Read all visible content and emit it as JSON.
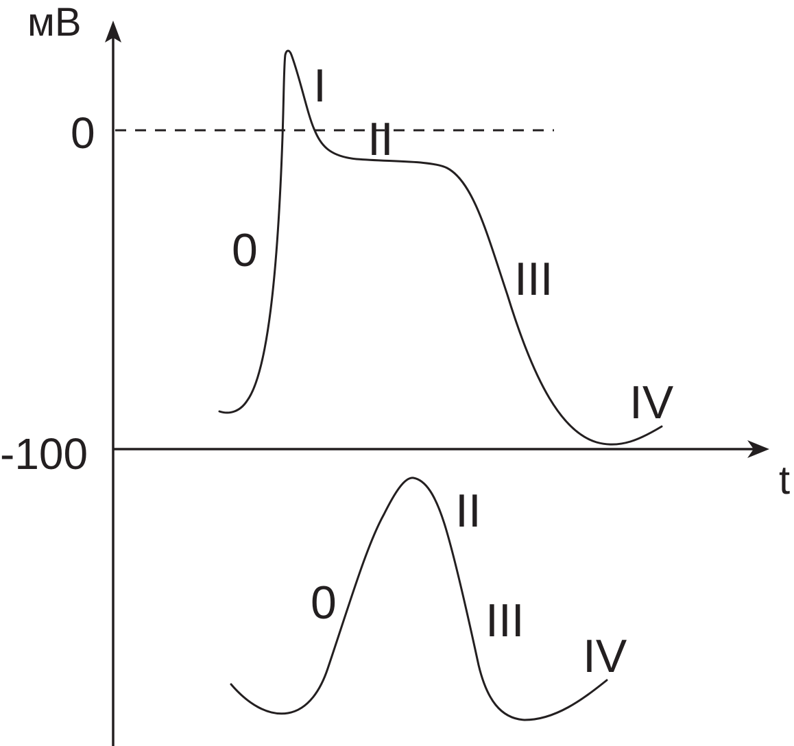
{
  "y_axis": {
    "unit": "мВ",
    "ticks": [
      {
        "value": "0"
      },
      {
        "value": "-100"
      }
    ]
  },
  "x_axis": {
    "label": "t"
  },
  "upper_curve": {
    "phases": [
      "0",
      "I",
      "II",
      "III",
      "IV"
    ]
  },
  "lower_curve": {
    "phases": [
      "0",
      "II",
      "III",
      "IV"
    ]
  },
  "colors": {
    "ink": "#231f20",
    "background": "#ffffff"
  }
}
